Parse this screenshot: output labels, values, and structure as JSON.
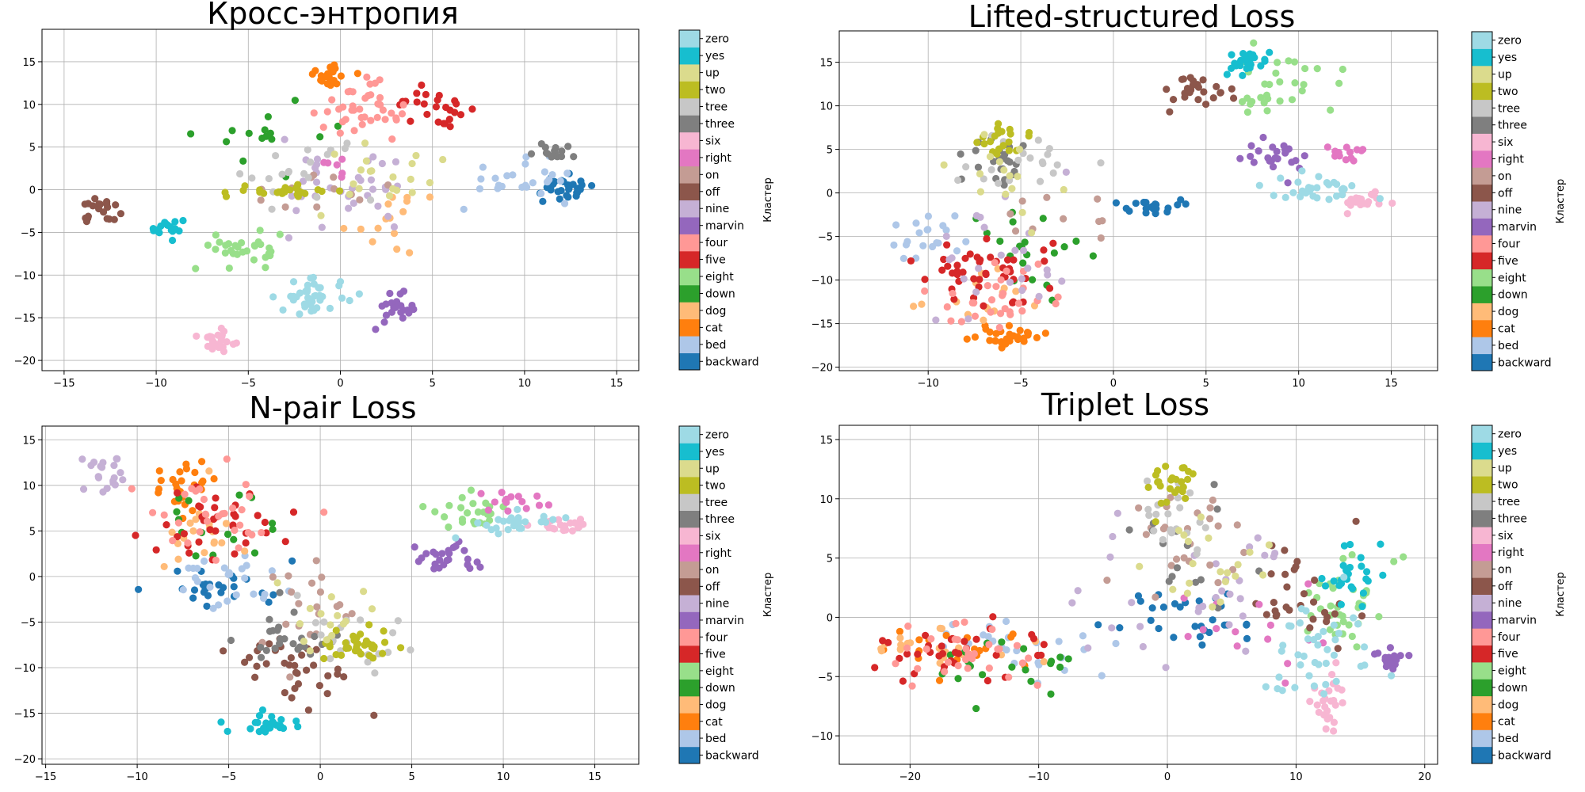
{
  "palette": [
    "#1f77b4",
    "#aec7e8",
    "#ff7f0e",
    "#ffbb78",
    "#2ca02c",
    "#98df8a",
    "#d62728",
    "#ff9896",
    "#9467bd",
    "#c5b0d5",
    "#8c564b",
    "#c49c94",
    "#e377c2",
    "#f7b6d2",
    "#7f7f7f",
    "#c7c7c7",
    "#bcbd22",
    "#dbdb8d",
    "#17becf",
    "#9edae5"
  ],
  "colorbar": {
    "title": "Кластер",
    "labels": [
      "backward",
      "bed",
      "cat",
      "dog",
      "down",
      "eight",
      "five",
      "four",
      "marvin",
      "nine",
      "off",
      "on",
      "right",
      "six",
      "three",
      "tree",
      "two",
      "up",
      "yes",
      "zero"
    ]
  },
  "chart_data": [
    {
      "type": "scatter",
      "title": "Кросс-энтропия",
      "xlim": [
        -16.2,
        16.2
      ],
      "ylim": [
        -21.2,
        18.8
      ],
      "xticks": [
        -15,
        -10,
        -5,
        0,
        5,
        10,
        15
      ],
      "yticks": [
        -20,
        -15,
        -10,
        -5,
        0,
        5,
        10,
        15
      ],
      "grid": true,
      "clusters": [
        {
          "label": "backward",
          "cx": 12.0,
          "cy": 0.0,
          "sx": 1.6,
          "sy": 1.4,
          "n": 30
        },
        {
          "label": "bed",
          "cx": 10.0,
          "cy": 1.5,
          "sx": 3.0,
          "sy": 2.5,
          "n": 25
        },
        {
          "label": "cat",
          "cx": -0.6,
          "cy": 13.5,
          "sx": 1.2,
          "sy": 1.5,
          "n": 20
        },
        {
          "label": "dog",
          "cx": 3.0,
          "cy": -3.0,
          "sx": 2.5,
          "sy": 3.0,
          "n": 15
        },
        {
          "label": "down",
          "cx": -3.5,
          "cy": 6.0,
          "sx": 3.5,
          "sy": 4.0,
          "n": 15
        },
        {
          "label": "eight",
          "cx": -5.0,
          "cy": -7.0,
          "sx": 2.0,
          "sy": 2.0,
          "n": 30
        },
        {
          "label": "five",
          "cx": 5.0,
          "cy": 10.0,
          "sx": 2.0,
          "sy": 1.5,
          "n": 25
        },
        {
          "label": "four",
          "cx": 1.0,
          "cy": 9.0,
          "sx": 2.0,
          "sy": 3.0,
          "n": 40
        },
        {
          "label": "marvin",
          "cx": 3.2,
          "cy": -14.0,
          "sx": 1.2,
          "sy": 1.5,
          "n": 25
        },
        {
          "label": "nine",
          "cx": 0.0,
          "cy": 0.0,
          "sx": 4.0,
          "sy": 5.0,
          "n": 35
        },
        {
          "label": "off",
          "cx": -13.0,
          "cy": -2.5,
          "sx": 0.9,
          "sy": 1.2,
          "n": 20
        },
        {
          "label": "on",
          "cx": -1.0,
          "cy": 0.0,
          "sx": 3.5,
          "sy": 3.5,
          "n": 12
        },
        {
          "label": "right",
          "cx": 0.0,
          "cy": 2.0,
          "sx": 2.0,
          "sy": 2.0,
          "n": 6
        },
        {
          "label": "six",
          "cx": -6.5,
          "cy": -17.5,
          "sx": 1.5,
          "sy": 1.3,
          "n": 25
        },
        {
          "label": "three",
          "cx": 11.5,
          "cy": 4.5,
          "sx": 1.4,
          "sy": 0.8,
          "n": 15
        },
        {
          "label": "tree",
          "cx": -2.0,
          "cy": 2.0,
          "sx": 3.5,
          "sy": 3.0,
          "n": 20
        },
        {
          "label": "two",
          "cx": -3.0,
          "cy": -0.2,
          "sx": 2.5,
          "sy": 0.8,
          "n": 25
        },
        {
          "label": "up",
          "cx": 2.0,
          "cy": 2.0,
          "sx": 3.0,
          "sy": 4.0,
          "n": 20
        },
        {
          "label": "yes",
          "cx": -9.3,
          "cy": -4.5,
          "sx": 0.7,
          "sy": 1.0,
          "n": 18
        },
        {
          "label": "zero",
          "cx": -1.5,
          "cy": -12.5,
          "sx": 1.8,
          "sy": 1.8,
          "n": 40
        }
      ]
    },
    {
      "type": "scatter",
      "title": "Lifted-structured Loss",
      "xlim": [
        -14.8,
        17.5
      ],
      "ylim": [
        -20.4,
        18.6
      ],
      "xticks": [
        -10,
        -5,
        0,
        5,
        10,
        15
      ],
      "yticks": [
        -20,
        -15,
        -10,
        -5,
        0,
        5,
        10,
        15
      ],
      "grid": true,
      "clusters": [
        {
          "label": "backward",
          "cx": 2.0,
          "cy": -1.5,
          "sx": 1.5,
          "sy": 0.8,
          "n": 20
        },
        {
          "label": "bed",
          "cx": -10.0,
          "cy": -5.0,
          "sx": 2.0,
          "sy": 2.5,
          "n": 20
        },
        {
          "label": "cat",
          "cx": -5.5,
          "cy": -16.5,
          "sx": 1.5,
          "sy": 1.0,
          "n": 30
        },
        {
          "label": "dog",
          "cx": -6.5,
          "cy": -12.0,
          "sx": 3.0,
          "sy": 3.0,
          "n": 15
        },
        {
          "label": "down",
          "cx": -5.0,
          "cy": -6.0,
          "sx": 3.0,
          "sy": 5.0,
          "n": 20
        },
        {
          "label": "eight",
          "cx": 9.0,
          "cy": 12.0,
          "sx": 2.5,
          "sy": 3.0,
          "n": 30
        },
        {
          "label": "five",
          "cx": -7.0,
          "cy": -9.0,
          "sx": 3.5,
          "sy": 4.0,
          "n": 45
        },
        {
          "label": "four",
          "cx": -6.0,
          "cy": -12.0,
          "sx": 3.0,
          "sy": 3.5,
          "n": 30
        },
        {
          "label": "marvin",
          "cx": 8.5,
          "cy": 4.5,
          "sx": 2.0,
          "sy": 2.0,
          "n": 25
        },
        {
          "label": "nine",
          "cx": -7.0,
          "cy": -7.0,
          "sx": 4.0,
          "sy": 7.0,
          "n": 25
        },
        {
          "label": "off",
          "cx": 4.5,
          "cy": 12.0,
          "sx": 1.8,
          "sy": 2.0,
          "n": 25
        },
        {
          "label": "on",
          "cx": -3.0,
          "cy": -2.0,
          "sx": 3.0,
          "sy": 4.0,
          "n": 10
        },
        {
          "label": "right",
          "cx": 12.5,
          "cy": 4.5,
          "sx": 1.0,
          "sy": 1.2,
          "n": 15
        },
        {
          "label": "six",
          "cx": 13.5,
          "cy": -1.0,
          "sx": 1.3,
          "sy": 0.9,
          "n": 20
        },
        {
          "label": "three",
          "cx": -6.0,
          "cy": 3.5,
          "sx": 1.5,
          "sy": 3.0,
          "n": 25
        },
        {
          "label": "tree",
          "cx": -5.0,
          "cy": 4.0,
          "sx": 2.5,
          "sy": 3.0,
          "n": 20
        },
        {
          "label": "two",
          "cx": -6.0,
          "cy": 6.0,
          "sx": 1.2,
          "sy": 2.0,
          "n": 20
        },
        {
          "label": "up",
          "cx": -6.0,
          "cy": 1.0,
          "sx": 3.0,
          "sy": 4.0,
          "n": 15
        },
        {
          "label": "yes",
          "cx": 7.5,
          "cy": 15.0,
          "sx": 1.2,
          "sy": 1.2,
          "n": 25
        },
        {
          "label": "zero",
          "cx": 11.0,
          "cy": 0.5,
          "sx": 3.0,
          "sy": 1.5,
          "n": 30
        }
      ]
    },
    {
      "type": "scatter",
      "title": "N-pair Loss",
      "xlim": [
        -15.2,
        17.4
      ],
      "ylim": [
        -20.6,
        16.5
      ],
      "xticks": [
        -15,
        -10,
        -5,
        0,
        5,
        10,
        15
      ],
      "yticks": [
        -20,
        -15,
        -10,
        -5,
        0,
        5,
        10,
        15
      ],
      "grid": true,
      "clusters": [
        {
          "label": "backward",
          "cx": -5.5,
          "cy": -1.5,
          "sx": 3.0,
          "sy": 2.5,
          "n": 25
        },
        {
          "label": "bed",
          "cx": -5.0,
          "cy": 0.0,
          "sx": 3.0,
          "sy": 3.0,
          "n": 25
        },
        {
          "label": "cat",
          "cx": -7.5,
          "cy": 10.0,
          "sx": 1.8,
          "sy": 2.5,
          "n": 25
        },
        {
          "label": "dog",
          "cx": -6.0,
          "cy": 5.0,
          "sx": 3.0,
          "sy": 4.0,
          "n": 20
        },
        {
          "label": "down",
          "cx": -5.0,
          "cy": 5.0,
          "sx": 4.0,
          "sy": 5.0,
          "n": 15
        },
        {
          "label": "eight",
          "cx": 8.0,
          "cy": 7.0,
          "sx": 2.0,
          "sy": 2.0,
          "n": 25
        },
        {
          "label": "five",
          "cx": -6.0,
          "cy": 6.0,
          "sx": 3.5,
          "sy": 4.0,
          "n": 35
        },
        {
          "label": "four",
          "cx": -6.0,
          "cy": 7.0,
          "sx": 4.0,
          "sy": 4.0,
          "n": 30
        },
        {
          "label": "marvin",
          "cx": 7.0,
          "cy": 2.0,
          "sx": 1.5,
          "sy": 1.5,
          "n": 25
        },
        {
          "label": "nine",
          "cx": -11.5,
          "cy": 11.0,
          "sx": 1.5,
          "sy": 2.0,
          "n": 20
        },
        {
          "label": "off",
          "cx": -1.5,
          "cy": -10.0,
          "sx": 2.5,
          "sy": 4.0,
          "n": 35
        },
        {
          "label": "on",
          "cx": 0.0,
          "cy": -3.0,
          "sx": 3.0,
          "sy": 5.0,
          "n": 20
        },
        {
          "label": "right",
          "cx": 10.5,
          "cy": 8.0,
          "sx": 2.0,
          "sy": 1.5,
          "n": 15
        },
        {
          "label": "six",
          "cx": 13.5,
          "cy": 5.5,
          "sx": 1.5,
          "sy": 0.8,
          "n": 20
        },
        {
          "label": "three",
          "cx": -2.0,
          "cy": -7.0,
          "sx": 2.5,
          "sy": 3.0,
          "n": 25
        },
        {
          "label": "tree",
          "cx": 2.0,
          "cy": -8.0,
          "sx": 3.0,
          "sy": 4.0,
          "n": 20
        },
        {
          "label": "two",
          "cx": 2.0,
          "cy": -7.5,
          "sx": 2.0,
          "sy": 1.5,
          "n": 35
        },
        {
          "label": "up",
          "cx": 0.0,
          "cy": -6.0,
          "sx": 3.0,
          "sy": 5.0,
          "n": 15
        },
        {
          "label": "yes",
          "cx": -3.0,
          "cy": -16.5,
          "sx": 1.5,
          "sy": 1.2,
          "n": 25
        },
        {
          "label": "zero",
          "cx": 10.5,
          "cy": 6.0,
          "sx": 2.0,
          "sy": 1.5,
          "n": 25
        }
      ]
    },
    {
      "type": "scatter",
      "title": "Triplet Loss",
      "xlim": [
        -25.5,
        21.0
      ],
      "ylim": [
        -12.4,
        16.2
      ],
      "xticks": [
        -20,
        -10,
        0,
        10,
        20
      ],
      "yticks": [
        -10,
        -5,
        0,
        5,
        10,
        15
      ],
      "grid": true,
      "clusters": [
        {
          "label": "backward",
          "cx": 2.0,
          "cy": 0.0,
          "sx": 5.0,
          "sy": 2.5,
          "n": 30
        },
        {
          "label": "bed",
          "cx": -12.0,
          "cy": -3.0,
          "sx": 6.0,
          "sy": 2.5,
          "n": 30
        },
        {
          "label": "cat",
          "cx": -17.0,
          "cy": -2.0,
          "sx": 5.0,
          "sy": 2.5,
          "n": 20
        },
        {
          "label": "dog",
          "cx": -17.0,
          "cy": -3.0,
          "sx": 5.0,
          "sy": 2.5,
          "n": 20
        },
        {
          "label": "down",
          "cx": -13.0,
          "cy": -4.0,
          "sx": 6.0,
          "sy": 2.5,
          "n": 20
        },
        {
          "label": "eight",
          "cx": 13.5,
          "cy": 1.0,
          "sx": 3.0,
          "sy": 4.0,
          "n": 35
        },
        {
          "label": "five",
          "cx": -16.0,
          "cy": -3.0,
          "sx": 6.0,
          "sy": 2.5,
          "n": 35
        },
        {
          "label": "four",
          "cx": -15.0,
          "cy": -3.0,
          "sx": 6.0,
          "sy": 2.5,
          "n": 30
        },
        {
          "label": "marvin",
          "cx": 17.0,
          "cy": -3.5,
          "sx": 1.2,
          "sy": 1.0,
          "n": 20
        },
        {
          "label": "nine",
          "cx": 3.0,
          "cy": 2.0,
          "sx": 8.0,
          "sy": 5.0,
          "n": 30
        },
        {
          "label": "off",
          "cx": 10.0,
          "cy": 2.0,
          "sx": 4.0,
          "sy": 4.0,
          "n": 30
        },
        {
          "label": "on",
          "cx": 1.0,
          "cy": 6.0,
          "sx": 4.0,
          "sy": 4.0,
          "n": 25
        },
        {
          "label": "right",
          "cx": 6.0,
          "cy": 0.0,
          "sx": 6.0,
          "sy": 4.0,
          "n": 15
        },
        {
          "label": "six",
          "cx": 12.5,
          "cy": -7.0,
          "sx": 1.2,
          "sy": 2.0,
          "n": 25
        },
        {
          "label": "three",
          "cx": 2.0,
          "cy": 6.0,
          "sx": 4.0,
          "sy": 5.0,
          "n": 15
        },
        {
          "label": "tree",
          "cx": 0.0,
          "cy": 9.0,
          "sx": 3.0,
          "sy": 3.0,
          "n": 20
        },
        {
          "label": "two",
          "cx": 0.5,
          "cy": 11.0,
          "sx": 2.0,
          "sy": 2.0,
          "n": 25
        },
        {
          "label": "up",
          "cx": 3.0,
          "cy": 5.0,
          "sx": 4.0,
          "sy": 4.0,
          "n": 20
        },
        {
          "label": "yes",
          "cx": 14.0,
          "cy": 4.0,
          "sx": 2.5,
          "sy": 2.5,
          "n": 25
        },
        {
          "label": "zero",
          "cx": 12.0,
          "cy": -3.0,
          "sx": 5.0,
          "sy": 4.0,
          "n": 40
        }
      ]
    }
  ]
}
